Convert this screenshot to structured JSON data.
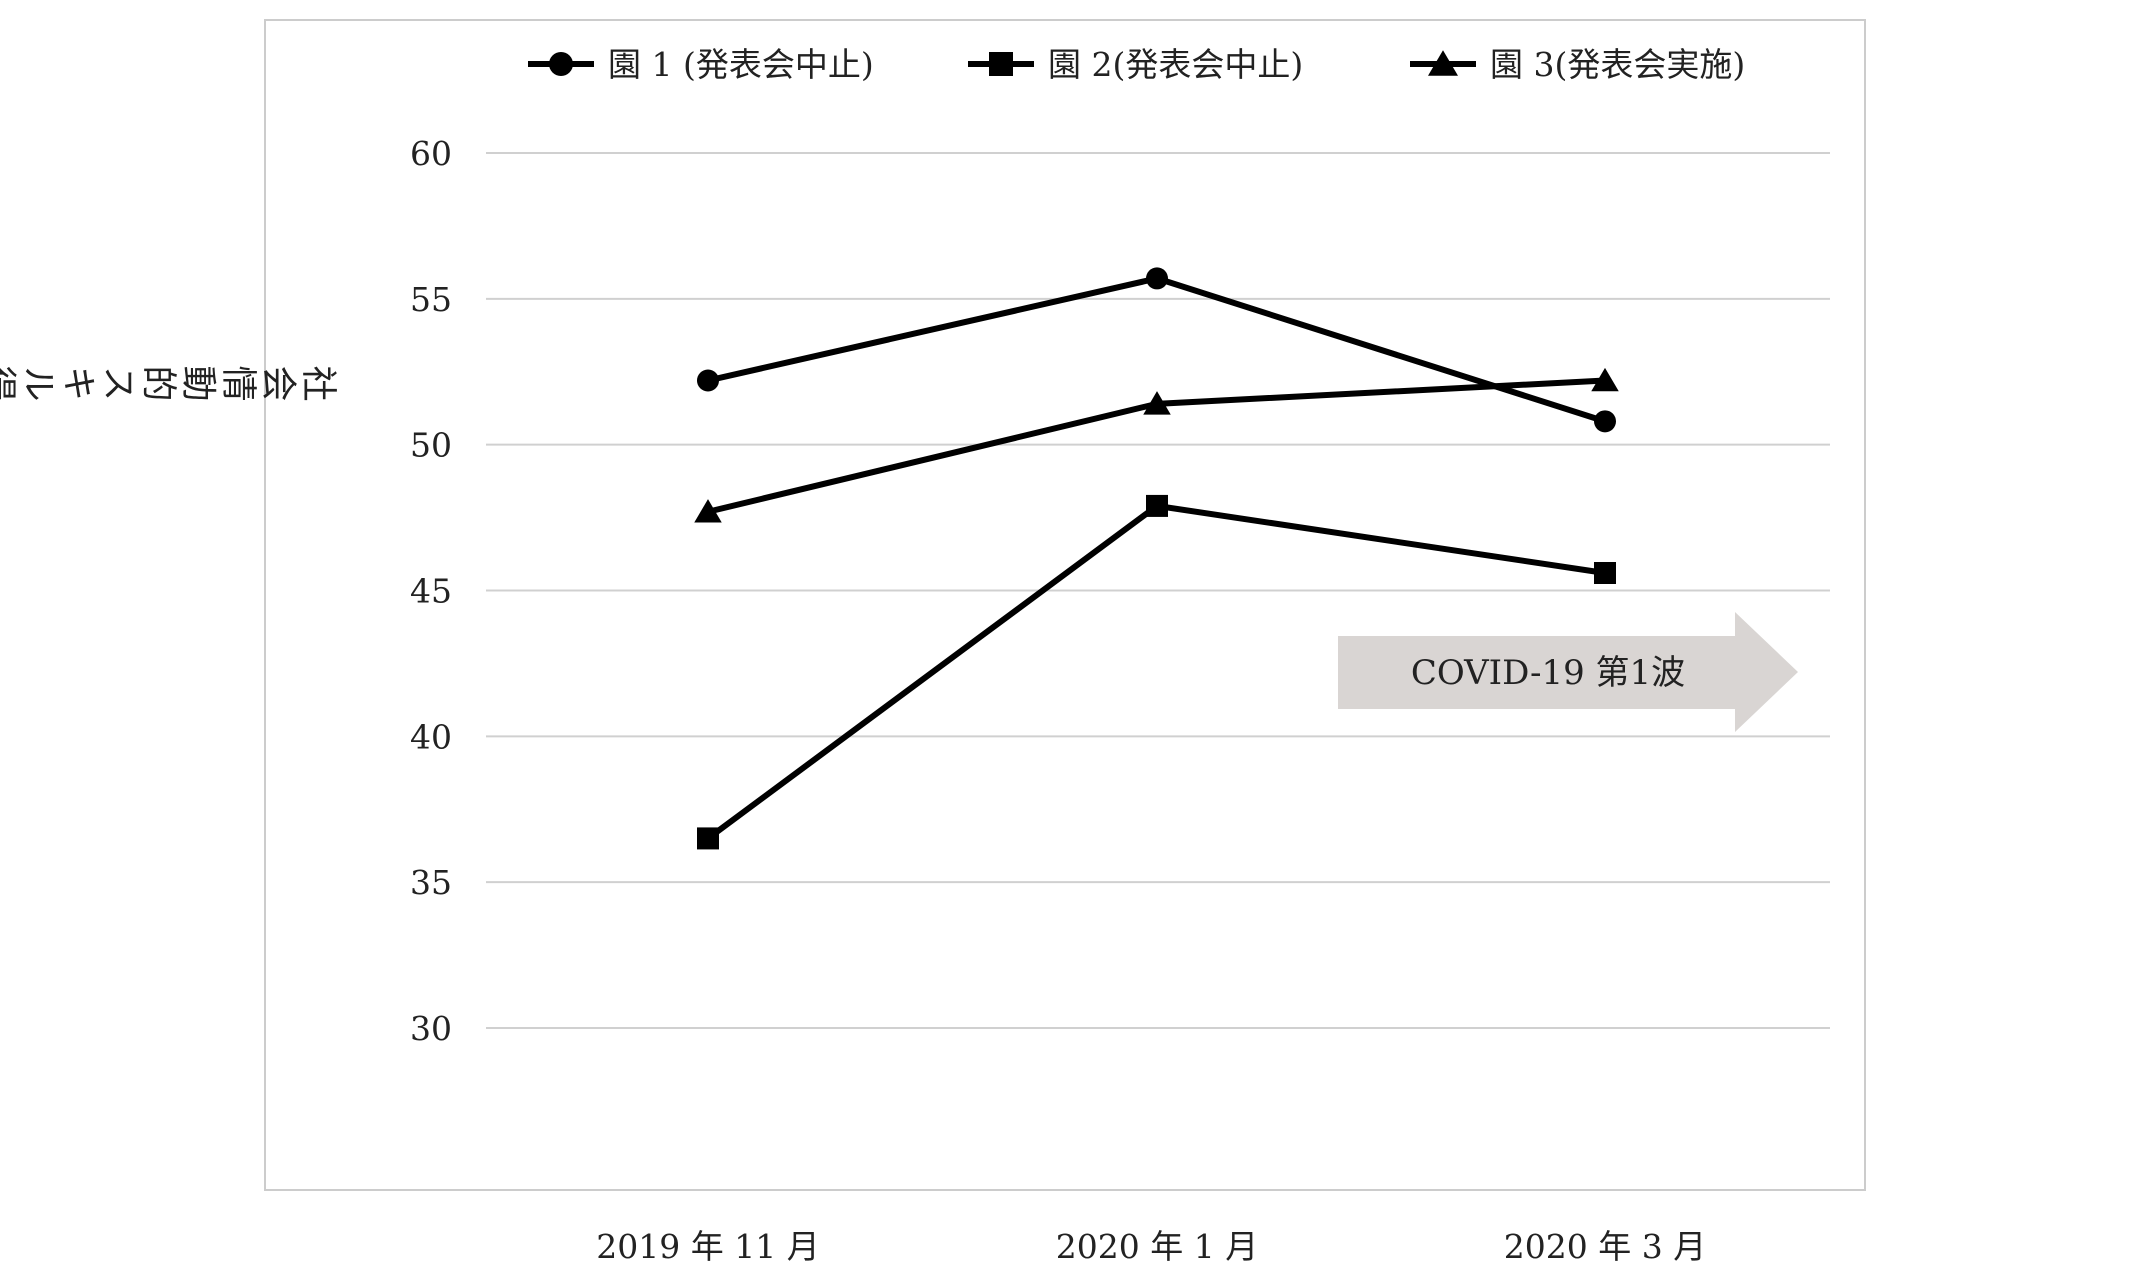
{
  "chart_data": {
    "type": "line",
    "categories": [
      "2019 年 11 月",
      "2020 年 1 月",
      "2020 年 3 月"
    ],
    "ylabel": "社会情動的スキル得点",
    "ylim": [
      30,
      60
    ],
    "yticks": [
      30,
      35,
      40,
      45,
      50,
      55,
      60
    ],
    "grid": true,
    "legend_position": "top",
    "series": [
      {
        "name": "園 1 (発表会中止)",
        "marker": "circle",
        "values": [
          52.2,
          55.7,
          50.8
        ]
      },
      {
        "name": "園 2(発表会中止)",
        "marker": "square",
        "values": [
          36.5,
          47.9,
          45.6
        ]
      },
      {
        "name": "園 3(発表会実施)",
        "marker": "triangle",
        "values": [
          47.7,
          51.4,
          52.2
        ]
      }
    ],
    "annotation": {
      "text": "COVID-19 第1波"
    }
  }
}
